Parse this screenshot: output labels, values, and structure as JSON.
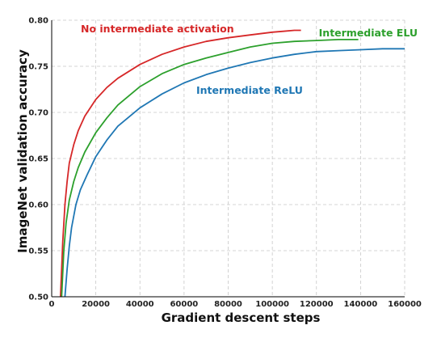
{
  "chart_data": {
    "type": "line",
    "xlabel": "Gradient descent steps",
    "ylabel": "ImageNet validation accuracy",
    "xlim": [
      0,
      160000
    ],
    "ylim": [
      0.5,
      0.8
    ],
    "xticks": [
      0,
      20000,
      40000,
      60000,
      80000,
      100000,
      120000,
      140000,
      160000
    ],
    "xtick_labels": [
      "0",
      "20000",
      "40000",
      "60000",
      "80000",
      "100000",
      "120000",
      "140000",
      "160000"
    ],
    "yticks": [
      0.5,
      0.55,
      0.6,
      0.65,
      0.7,
      0.75,
      0.8
    ],
    "ytick_labels": [
      "0.50",
      "0.55",
      "0.60",
      "0.65",
      "0.70",
      "0.75",
      "0.80"
    ],
    "grid": true,
    "legend": "inline labels",
    "series": [
      {
        "name": "No intermediate activation",
        "color": "#d62728",
        "x": [
          4000,
          5000,
          6000,
          7000,
          8000,
          10000,
          12000,
          15000,
          20000,
          25000,
          30000,
          40000,
          50000,
          60000,
          70000,
          80000,
          90000,
          100000,
          105000,
          110000,
          113000
        ],
        "y": [
          0.5,
          0.56,
          0.6,
          0.625,
          0.645,
          0.665,
          0.68,
          0.696,
          0.714,
          0.727,
          0.737,
          0.752,
          0.763,
          0.771,
          0.777,
          0.781,
          0.784,
          0.787,
          0.788,
          0.789,
          0.789
        ]
      },
      {
        "name": "Intermediate ELU",
        "color": "#2ca02c",
        "x": [
          4500,
          5500,
          6500,
          8000,
          10000,
          12000,
          15000,
          20000,
          25000,
          30000,
          40000,
          50000,
          60000,
          70000,
          80000,
          90000,
          100000,
          110000,
          120000,
          130000,
          139000
        ],
        "y": [
          0.5,
          0.55,
          0.58,
          0.605,
          0.625,
          0.64,
          0.657,
          0.678,
          0.694,
          0.708,
          0.728,
          0.742,
          0.752,
          0.759,
          0.765,
          0.771,
          0.775,
          0.777,
          0.778,
          0.779,
          0.779
        ]
      },
      {
        "name": "Intermediate ReLU",
        "color": "#1f77b4",
        "x": [
          6000,
          7000,
          8000,
          9000,
          11000,
          13000,
          16000,
          20000,
          25000,
          30000,
          40000,
          50000,
          60000,
          70000,
          80000,
          90000,
          100000,
          110000,
          120000,
          130000,
          140000,
          150000,
          160000
        ],
        "y": [
          0.5,
          0.53,
          0.555,
          0.575,
          0.6,
          0.616,
          0.632,
          0.652,
          0.67,
          0.685,
          0.705,
          0.72,
          0.732,
          0.741,
          0.748,
          0.754,
          0.759,
          0.763,
          0.766,
          0.767,
          0.768,
          0.769,
          0.769
        ]
      }
    ]
  }
}
